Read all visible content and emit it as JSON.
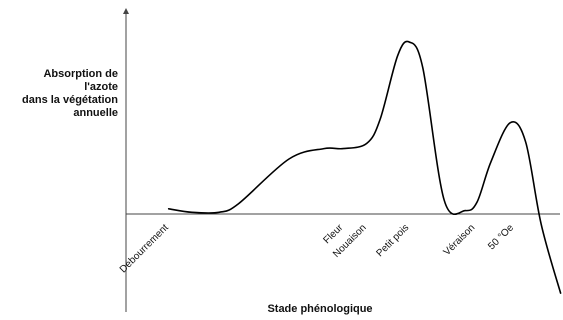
{
  "chart_data": {
    "type": "line",
    "ylabel_lines": [
      "Absorption de",
      "l'azote",
      "dans la végétation",
      "annuelle"
    ],
    "xlabel": "Stade phénologique",
    "stages": [
      "Débourrement",
      "Fleur",
      "Nouaison",
      "Petit pois",
      "Véraison",
      "50 °Oe"
    ],
    "stage_positions": [
      0.11,
      0.56,
      0.62,
      0.73,
      0.9,
      1.0
    ],
    "series": [
      {
        "x": [
          0.11,
          0.17,
          0.24,
          0.29,
          0.42,
          0.51,
          0.56,
          0.62,
          0.655,
          0.7,
          0.73,
          0.765,
          0.82,
          0.875,
          0.905,
          0.94,
          0.99,
          1.03,
          1.07,
          1.12
        ],
        "y": [
          0.03,
          0.01,
          0.01,
          0.06,
          0.32,
          0.38,
          0.38,
          0.41,
          0.55,
          0.92,
          1.0,
          0.85,
          0.08,
          0.02,
          0.07,
          0.3,
          0.53,
          0.42,
          -0.06,
          -0.46
        ]
      }
    ],
    "xlim": [
      0.0,
      1.12
    ],
    "ylim": [
      -0.5,
      1.1
    ],
    "grid": false
  }
}
